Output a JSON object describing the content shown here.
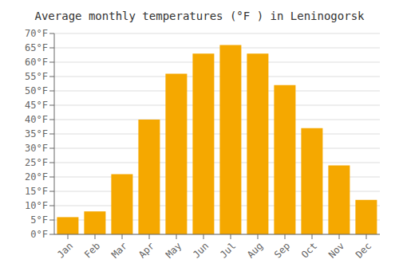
{
  "chart_data": {
    "type": "bar",
    "title": "Average monthly temperatures (°F ) in Leninogorsk",
    "categories": [
      "Jan",
      "Feb",
      "Mar",
      "Apr",
      "May",
      "Jun",
      "Jul",
      "Aug",
      "Sep",
      "Oct",
      "Nov",
      "Dec"
    ],
    "values": [
      6,
      8,
      21,
      40,
      56,
      63,
      66,
      63,
      52,
      37,
      24,
      12
    ],
    "color": "#F5A800",
    "ylim": [
      0,
      70
    ],
    "yticks": [
      {
        "value": 0,
        "label": "0°F"
      },
      {
        "value": 5,
        "label": "5°F"
      },
      {
        "value": 10,
        "label": "10°F"
      },
      {
        "value": 15,
        "label": "15°F"
      },
      {
        "value": 20,
        "label": "20°F"
      },
      {
        "value": 25,
        "label": "25°F"
      },
      {
        "value": 30,
        "label": "30°F"
      },
      {
        "value": 35,
        "label": "35°F"
      },
      {
        "value": 40,
        "label": "40°F"
      },
      {
        "value": 45,
        "label": "45°F"
      },
      {
        "value": 50,
        "label": "50°F"
      },
      {
        "value": 55,
        "label": "55°F"
      },
      {
        "value": 60,
        "label": "60°F"
      },
      {
        "value": 65,
        "label": "65°F"
      },
      {
        "value": 70,
        "label": "70°F"
      }
    ],
    "grid": true
  }
}
